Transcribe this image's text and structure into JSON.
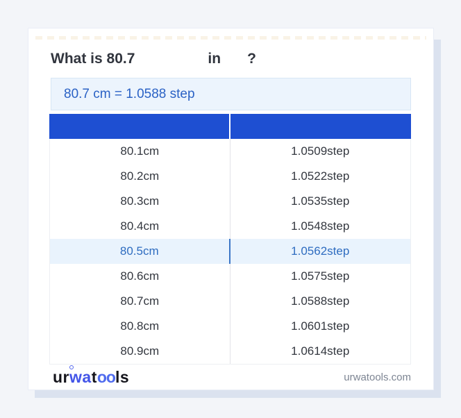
{
  "question": {
    "prefix": "What is",
    "value": "80.7",
    "unit_from": "",
    "connector": "in",
    "unit_to": "",
    "suffix": "?"
  },
  "result": {
    "text": "80.7 cm = 1.0588 step"
  },
  "conversion_table": {
    "columns": [
      "",
      ""
    ],
    "rows": [
      {
        "from": "80.1cm",
        "to": "1.0509step"
      },
      {
        "from": "80.2cm",
        "to": "1.0522step"
      },
      {
        "from": "80.3cm",
        "to": "1.0535step"
      },
      {
        "from": "80.4cm",
        "to": "1.0548step"
      },
      {
        "from": "80.5cm",
        "to": "1.0562step"
      },
      {
        "from": "80.6cm",
        "to": "1.0575step"
      },
      {
        "from": "80.7cm",
        "to": "1.0588step"
      },
      {
        "from": "80.8cm",
        "to": "1.0601step"
      },
      {
        "from": "80.9cm",
        "to": "1.0614step"
      }
    ],
    "highlighted_row_index": 4
  },
  "footer": {
    "brand": {
      "p1": "ur",
      "p2": "wa",
      "p3": "t",
      "p4": "oo",
      "p5": "ls"
    },
    "website": "urwatools.com"
  },
  "colors": {
    "page_bg": "#f3f5f9",
    "card_shadow": "#dbe2ef",
    "header_blue": "#1e4fd2",
    "result_box_bg": "#ecf4fd",
    "result_text": "#2b62c5",
    "highlight_row_bg": "#e9f3fd",
    "highlight_row_text": "#2e6cc0",
    "row_text": "#33373f",
    "brand_blue": "#4355e8"
  }
}
